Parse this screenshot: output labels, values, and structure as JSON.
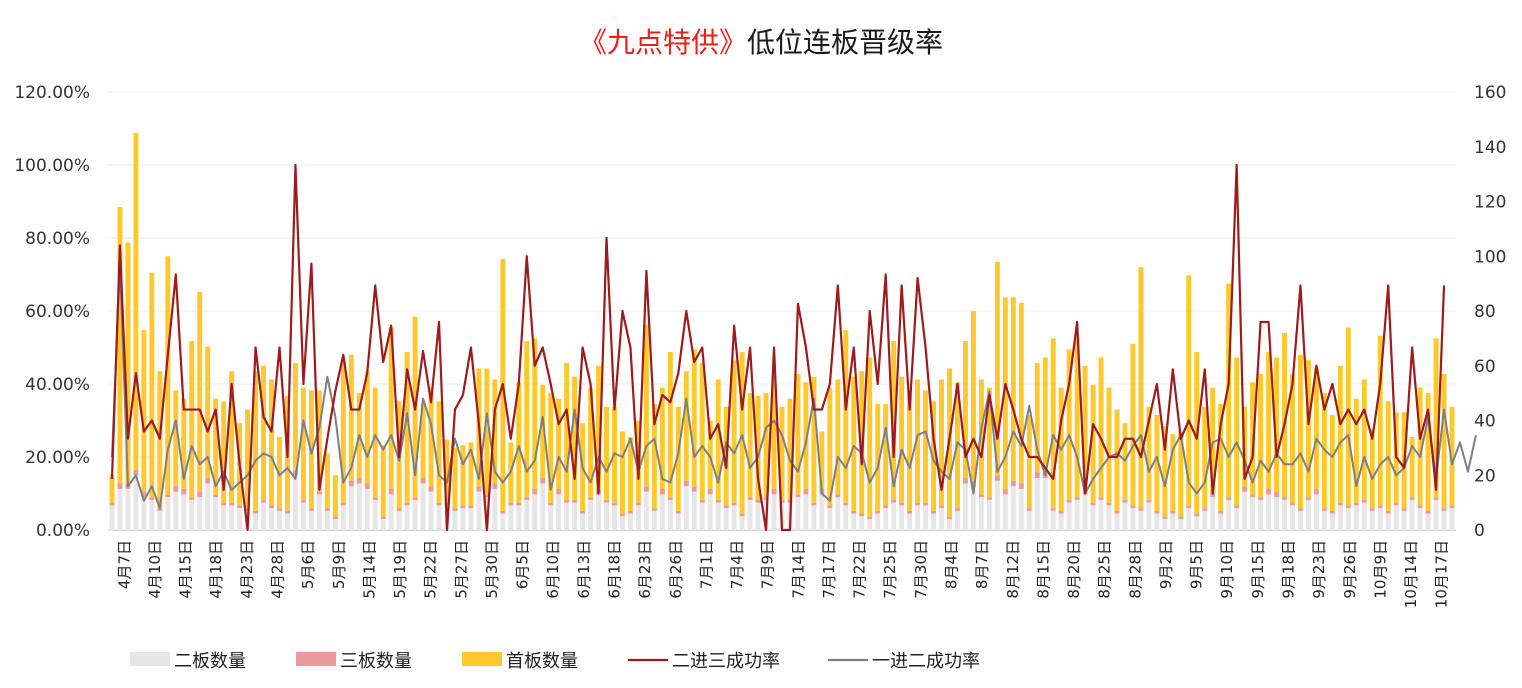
{
  "chart_data": {
    "type": "bar+line",
    "title_red": "《九点特供》",
    "title_black": "低位连板晋级率",
    "y_left": {
      "min": 0,
      "max": 1.2,
      "ticks": [
        "0.00%",
        "20.00%",
        "40.00%",
        "60.00%",
        "80.00%",
        "100.00%",
        "120.00%"
      ]
    },
    "y_right": {
      "min": 0,
      "max": 160,
      "ticks": [
        "0",
        "20",
        "40",
        "60",
        "80",
        "100",
        "120",
        "140",
        "160"
      ]
    },
    "x_tick_labels": [
      "4月7日",
      "4月10日",
      "4月15日",
      "4月18日",
      "4月23日",
      "4月28日",
      "5月6日",
      "5月9日",
      "5月14日",
      "5月19日",
      "5月22日",
      "5月27日",
      "5月30日",
      "6月5日",
      "6月10日",
      "6月13日",
      "6月18日",
      "6月23日",
      "6月26日",
      "7月1日",
      "7月4日",
      "7月9日",
      "7月14日",
      "7月17日",
      "7月22日",
      "7月25日",
      "7月30日",
      "8月4日",
      "8月7日",
      "8月12日",
      "8月15日",
      "8月20日",
      "8月25日",
      "8月28日",
      "9月2日",
      "9月5日",
      "9月10日",
      "9月15日",
      "9月18日",
      "9月23日",
      "9月26日",
      "10月9日",
      "10月14日",
      "10月17日"
    ],
    "series": [
      {
        "name": "二板数量",
        "type": "bar",
        "axis": "right",
        "color": "#e6e6e6",
        "values": [
          9,
          15,
          15,
          20,
          12,
          11,
          7,
          12,
          14,
          13,
          11,
          12,
          17,
          12,
          9,
          9,
          8,
          7,
          6,
          10,
          8,
          7,
          6,
          20,
          10,
          7,
          13,
          7,
          4,
          9,
          16,
          17,
          15,
          11,
          4,
          13,
          7,
          9,
          11,
          17,
          14,
          9,
          9,
          7,
          8,
          8,
          14,
          12,
          15,
          6,
          9,
          9,
          11,
          13,
          17,
          9,
          13,
          10,
          10,
          6,
          11,
          13,
          10,
          9,
          5,
          6,
          9,
          14,
          7,
          13,
          11,
          6,
          16,
          14,
          10,
          13,
          10,
          8,
          9,
          5,
          11,
          10,
          11,
          13,
          10,
          10,
          12,
          13,
          9,
          13,
          8,
          12,
          9,
          6,
          5,
          4,
          6,
          8,
          10,
          9,
          6,
          9,
          9,
          6,
          8,
          4,
          7,
          17,
          16,
          12,
          11,
          18,
          13,
          16,
          15,
          7,
          19,
          19,
          7,
          6,
          10,
          11,
          13,
          9,
          11,
          9,
          6,
          10,
          8,
          7,
          10,
          6,
          4,
          6,
          4,
          8,
          5,
          7,
          12,
          6,
          11,
          8,
          14,
          12,
          11,
          13,
          12,
          11,
          9,
          7,
          11,
          13,
          7,
          6,
          9,
          8,
          9,
          10,
          7,
          8,
          6,
          9,
          7,
          11,
          8,
          6,
          11,
          7,
          8
        ]
      },
      {
        "name": "三板数量",
        "type": "bar",
        "axis": "right",
        "color": "#e99a9e",
        "values": [
          1,
          2,
          2,
          2,
          2,
          1,
          1,
          1,
          2,
          2,
          1,
          2,
          2,
          1,
          1,
          1,
          1,
          1,
          1,
          1,
          1,
          1,
          1,
          2,
          1,
          1,
          1,
          1,
          1,
          1,
          2,
          2,
          2,
          1,
          1,
          2,
          1,
          1,
          1,
          2,
          2,
          1,
          1,
          1,
          1,
          1,
          2,
          1,
          2,
          1,
          1,
          1,
          1,
          2,
          2,
          1,
          2,
          1,
          1,
          1,
          1,
          2,
          1,
          1,
          1,
          1,
          1,
          2,
          1,
          2,
          1,
          1,
          2,
          2,
          1,
          2,
          1,
          1,
          1,
          1,
          1,
          1,
          1,
          2,
          1,
          1,
          1,
          2,
          1,
          2,
          1,
          1,
          1,
          1,
          1,
          1,
          1,
          1,
          1,
          1,
          1,
          1,
          1,
          1,
          1,
          1,
          1,
          2,
          2,
          1,
          1,
          2,
          2,
          2,
          2,
          1,
          2,
          2,
          1,
          1,
          1,
          1,
          2,
          1,
          1,
          1,
          1,
          1,
          1,
          1,
          1,
          1,
          1,
          1,
          1,
          1,
          1,
          1,
          2,
          1,
          1,
          1,
          2,
          1,
          1,
          2,
          2,
          1,
          1,
          1,
          1,
          2,
          1,
          1,
          1,
          1,
          1,
          1,
          1,
          1,
          1,
          1,
          1,
          1,
          1,
          1,
          1,
          1,
          1
        ]
      },
      {
        "name": "首板数量",
        "type": "bar",
        "axis": "right",
        "color": "#ffc82c",
        "values": [
          10,
          101,
          88,
          123,
          59,
          82,
          50,
          87,
          35,
          33,
          57,
          73,
          48,
          35,
          37,
          48,
          30,
          36,
          51,
          49,
          46,
          26,
          42,
          39,
          41,
          43,
          37,
          20,
          15,
          52,
          46,
          31,
          41,
          40,
          26,
          59,
          39,
          55,
          66,
          27,
          36,
          37,
          23,
          22,
          22,
          23,
          43,
          46,
          38,
          92,
          22,
          44,
          57,
          55,
          34,
          40,
          33,
          50,
          45,
          32,
          40,
          45,
          34,
          35,
          30,
          27,
          30,
          59,
          38,
          37,
          53,
          38,
          40,
          50,
          50,
          25,
          44,
          36,
          52,
          59,
          38,
          38,
          38,
          41,
          34,
          37,
          44,
          39,
          46,
          21,
          43,
          42,
          63,
          49,
          52,
          58,
          39,
          37,
          58,
          46,
          43,
          45,
          41,
          40,
          46,
          54,
          46,
          50,
          62,
          42,
          40,
          78,
          70,
          67,
          66,
          34,
          40,
          42,
          62,
          45,
          55,
          58,
          45,
          43,
          51,
          42,
          37,
          28,
          59,
          88,
          34,
          35,
          33,
          28,
          31,
          84,
          59,
          37,
          38,
          39,
          78,
          54,
          29,
          41,
          45,
          50,
          49,
          60,
          47,
          56,
          50,
          44,
          42,
          35,
          50,
          65,
          38,
          44,
          29,
          62,
          40,
          33,
          35,
          22,
          43,
          43,
          58,
          49,
          36
        ]
      },
      {
        "name": "二进三成功率",
        "type": "line",
        "axis": "left",
        "color": "#9b1b1e",
        "values": [
          0.14,
          0.78,
          0.25,
          0.43,
          0.27,
          0.3,
          0.25,
          0.48,
          0.7,
          0.33,
          0.33,
          0.33,
          0.27,
          0.33,
          0.11,
          0.4,
          0.18,
          0.0,
          0.5,
          0.31,
          0.27,
          0.5,
          0.2,
          1.0,
          0.4,
          0.73,
          0.11,
          0.25,
          0.38,
          0.48,
          0.33,
          0.33,
          0.43,
          0.67,
          0.46,
          0.56,
          0.2,
          0.44,
          0.33,
          0.49,
          0.35,
          0.57,
          0.0,
          0.33,
          0.37,
          0.5,
          0.29,
          0.0,
          0.33,
          0.4,
          0.25,
          0.4,
          0.75,
          0.45,
          0.5,
          0.4,
          0.29,
          0.33,
          0.14,
          0.5,
          0.4,
          0.1,
          0.8,
          0.33,
          0.6,
          0.5,
          0.14,
          0.71,
          0.29,
          0.37,
          0.35,
          0.43,
          0.6,
          0.46,
          0.5,
          0.25,
          0.29,
          0.17,
          0.56,
          0.33,
          0.5,
          0.14,
          0.0,
          0.5,
          0.0,
          0.0,
          0.62,
          0.5,
          0.33,
          0.33,
          0.4,
          0.67,
          0.33,
          0.5,
          0.18,
          0.6,
          0.4,
          0.7,
          0.2,
          0.67,
          0.33,
          0.69,
          0.5,
          0.25,
          0.11,
          0.25,
          0.4,
          0.2,
          0.25,
          0.2,
          0.37,
          0.25,
          0.4,
          0.33,
          0.25,
          0.2,
          0.2,
          0.17,
          0.14,
          0.3,
          0.4,
          0.57,
          0.1,
          0.29,
          0.25,
          0.2,
          0.2,
          0.25,
          0.25,
          0.2,
          0.3,
          0.4,
          0.22,
          0.44,
          0.25,
          0.3,
          0.25,
          0.44,
          0.1,
          0.29,
          0.4,
          1.0,
          0.14,
          0.2,
          0.57,
          0.57,
          0.2,
          0.29,
          0.4,
          0.67,
          0.29,
          0.45,
          0.33,
          0.4,
          0.29,
          0.33,
          0.29,
          0.33,
          0.25,
          0.4,
          0.67,
          0.2,
          0.17,
          0.5,
          0.25,
          0.33,
          0.11,
          0.67
        ]
      },
      {
        "name": "一进二成功率",
        "type": "line",
        "axis": "left",
        "color": "#7f7f7f",
        "values": [
          0.2,
          0.73,
          0.12,
          0.15,
          0.08,
          0.12,
          0.06,
          0.22,
          0.3,
          0.14,
          0.23,
          0.18,
          0.2,
          0.12,
          0.16,
          0.11,
          0.13,
          0.15,
          0.19,
          0.21,
          0.2,
          0.15,
          0.17,
          0.14,
          0.3,
          0.21,
          0.28,
          0.42,
          0.31,
          0.13,
          0.17,
          0.26,
          0.2,
          0.26,
          0.22,
          0.26,
          0.19,
          0.32,
          0.15,
          0.36,
          0.29,
          0.15,
          0.13,
          0.25,
          0.18,
          0.22,
          0.14,
          0.32,
          0.16,
          0.13,
          0.16,
          0.23,
          0.16,
          0.19,
          0.31,
          0.11,
          0.2,
          0.16,
          0.33,
          0.17,
          0.13,
          0.2,
          0.16,
          0.21,
          0.2,
          0.25,
          0.16,
          0.23,
          0.25,
          0.14,
          0.13,
          0.21,
          0.36,
          0.2,
          0.23,
          0.2,
          0.13,
          0.24,
          0.21,
          0.26,
          0.17,
          0.2,
          0.28,
          0.3,
          0.26,
          0.19,
          0.16,
          0.24,
          0.36,
          0.1,
          0.08,
          0.2,
          0.17,
          0.23,
          0.21,
          0.13,
          0.17,
          0.28,
          0.12,
          0.22,
          0.17,
          0.26,
          0.27,
          0.19,
          0.16,
          0.14,
          0.24,
          0.22,
          0.1,
          0.28,
          0.38,
          0.16,
          0.2,
          0.27,
          0.23,
          0.34,
          0.22,
          0.15,
          0.26,
          0.22,
          0.26,
          0.2,
          0.1,
          0.14,
          0.17,
          0.2,
          0.21,
          0.19,
          0.23,
          0.26,
          0.16,
          0.2,
          0.12,
          0.22,
          0.26,
          0.13,
          0.1,
          0.13,
          0.24,
          0.25,
          0.2,
          0.24,
          0.19,
          0.13,
          0.19,
          0.16,
          0.21,
          0.18,
          0.18,
          0.21,
          0.16,
          0.25,
          0.22,
          0.2,
          0.24,
          0.26,
          0.12,
          0.2,
          0.14,
          0.18,
          0.2,
          0.15,
          0.17,
          0.23,
          0.2,
          0.31,
          0.14,
          0.33,
          0.18,
          0.24,
          0.16,
          0.26
        ]
      }
    ],
    "legend": [
      {
        "label": "二板数量",
        "kind": "bar",
        "color": "#e6e6e6"
      },
      {
        "label": "三板数量",
        "kind": "bar",
        "color": "#e99a9e"
      },
      {
        "label": "首板数量",
        "kind": "bar",
        "color": "#ffc82c"
      },
      {
        "label": "二进三成功率",
        "kind": "line",
        "color": "#9b1b1e"
      },
      {
        "label": "一进二成功率",
        "kind": "line",
        "color": "#7f7f7f"
      }
    ],
    "legend_position": "bottom-center",
    "grid": true
  }
}
